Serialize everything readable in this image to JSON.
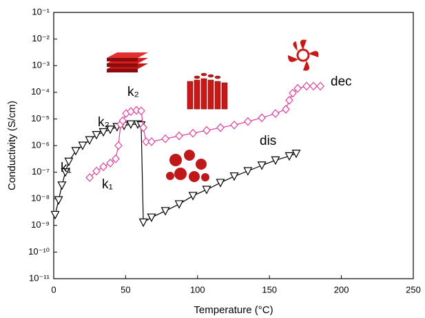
{
  "chart_data": {
    "type": "scatter",
    "x_label": "Temperature (°C)",
    "y_label": "Conductivity (S/cm)",
    "xlim": [
      0,
      250
    ],
    "xticks": [
      0,
      50,
      100,
      150,
      200,
      250
    ],
    "ylim": [
      1e-11,
      0.1
    ],
    "log_y": true,
    "yticks": [
      {
        "value": 1e-11,
        "label": "10⁻¹¹"
      },
      {
        "value": 1e-10,
        "label": "10⁻¹⁰"
      },
      {
        "value": 1e-09,
        "label": "10⁻⁹"
      },
      {
        "value": 1e-08,
        "label": "10⁻⁸"
      },
      {
        "value": 1e-07,
        "label": "10⁻⁷"
      },
      {
        "value": 1e-06,
        "label": "10⁻⁶"
      },
      {
        "value": 1e-05,
        "label": "10⁻⁵"
      },
      {
        "value": 0.0001,
        "label": "10⁻⁴"
      },
      {
        "value": 0.001,
        "label": "10⁻³"
      },
      {
        "value": 0.01,
        "label": "10⁻²"
      },
      {
        "value": 0.1,
        "label": "10⁻¹"
      }
    ],
    "series": [
      {
        "marker": "triangle-down",
        "color": "#000000",
        "x": [
          1,
          3.4,
          5.7,
          8.1,
          10.5,
          15.3,
          20.1,
          24.9,
          29.7,
          34.5,
          39.3,
          44,
          48.9,
          53.6,
          58.4,
          60.8,
          62.3,
          68,
          77.6,
          87.2,
          96.8,
          106.3,
          115.9,
          125.5,
          135,
          144.7,
          154.2,
          163.8,
          168.6
        ],
        "values": [
          2.5e-09,
          8.9e-09,
          3.2e-08,
          1e-07,
          2.5e-07,
          6.3e-07,
          1e-06,
          1.6e-06,
          2.5e-06,
          3.2e-06,
          4e-06,
          5e-06,
          5.6e-06,
          6.3e-06,
          6.3e-06,
          5.8e-06,
          1.3e-09,
          2e-09,
          3.5e-09,
          6.3e-09,
          1.3e-08,
          2.2e-08,
          4e-08,
          7e-08,
          1.1e-07,
          1.8e-07,
          2.8e-07,
          4e-07,
          5e-07
        ]
      },
      {
        "marker": "diamond",
        "color": "#e0409a",
        "x": [
          25,
          29.7,
          34.5,
          39.3,
          43.1,
          45,
          46.5,
          48,
          50.3,
          53.6,
          57.5,
          60.8,
          62.3,
          64.2,
          68,
          77.6,
          87.2,
          96.8,
          106.3,
          115.9,
          125.5,
          135,
          144.7,
          154.2,
          161.4,
          163.8,
          166.2,
          169.6,
          175.8,
          180.6,
          185.4
        ],
        "values": [
          6.3e-08,
          1.1e-07,
          1.6e-07,
          2.2e-07,
          3.2e-07,
          1e-06,
          6.3e-06,
          8.5e-06,
          1.6e-05,
          1.9e-05,
          2.1e-05,
          2e-05,
          4.7e-06,
          1.4e-06,
          1.4e-06,
          1.8e-06,
          2.3e-06,
          2.9e-06,
          3.7e-06,
          4.7e-06,
          5.9e-06,
          8e-06,
          1.1e-05,
          1.6e-05,
          2.3e-05,
          5e-05,
          9.3e-05,
          0.00014,
          0.00017,
          0.00017,
          0.00017
        ]
      }
    ],
    "annotations": [
      "k₁",
      "k₂",
      "k₂",
      "k₁",
      "dis",
      "dec"
    ]
  }
}
